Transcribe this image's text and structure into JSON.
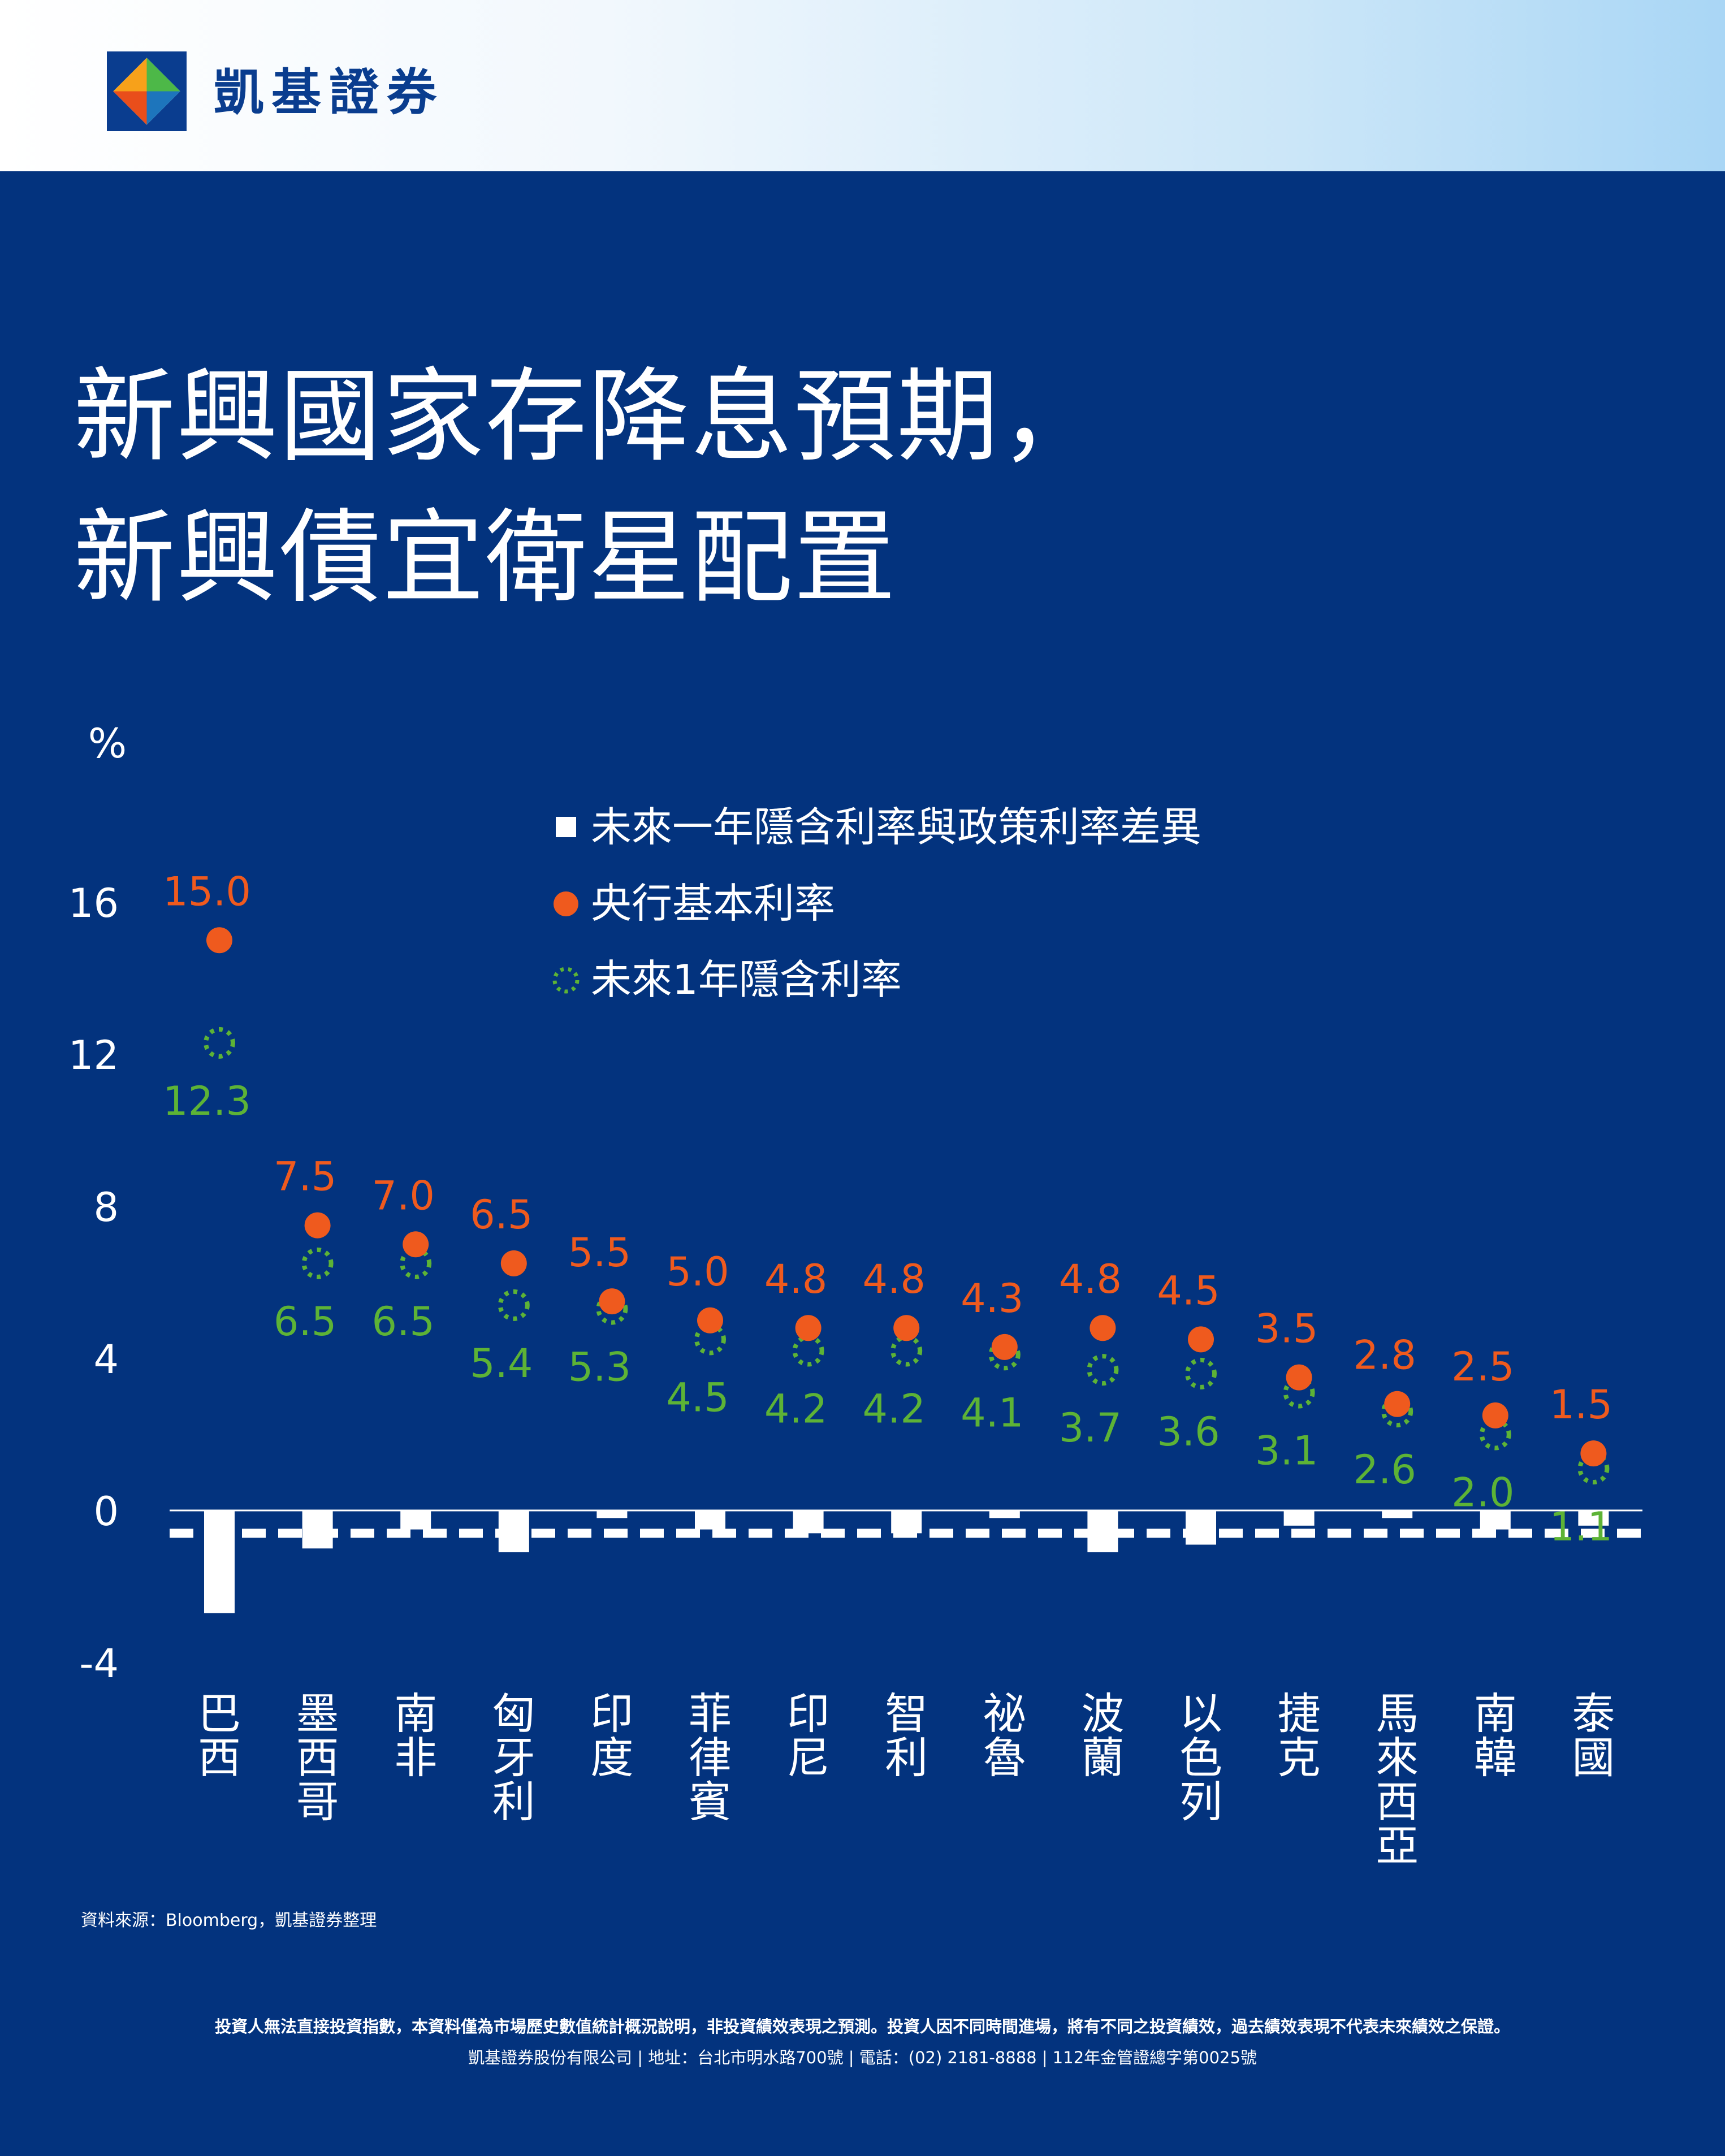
{
  "brand": {
    "name": "凱基證券",
    "colors": {
      "blue": "#0a3d8f",
      "orange": "#ef5a1e",
      "green": "#5db336",
      "white": "#ffffff"
    }
  },
  "title": {
    "line1": "新興國家存降息預期，",
    "line2": "新興債宜衛星配置"
  },
  "legend": {
    "diff": "未來一年隱含利率與政策利率差異",
    "policy": "央行基本利率",
    "implied": "未來1年隱含利率"
  },
  "chart_data": {
    "type": "bar+scatter",
    "ylabel": "%",
    "ylim": [
      -4,
      18
    ],
    "yticks": [
      16,
      12,
      8,
      4,
      0,
      -4
    ],
    "tick_labels": [
      "16",
      "12",
      "8",
      "4",
      "0",
      "-4"
    ],
    "categories": [
      "巴西",
      "墨西哥",
      "南非",
      "匈牙利",
      "印度",
      "菲律賓",
      "印尼",
      "智利",
      "祕魯",
      "波蘭",
      "以色列",
      "捷克",
      "馬來西亞",
      "南韓",
      "泰國"
    ],
    "series": [
      {
        "name": "未來一年隱含利率與政策利率差異",
        "type": "bar",
        "color": "#ffffff",
        "values": [
          -2.7,
          -1.0,
          -0.5,
          -1.1,
          -0.2,
          -0.5,
          -0.6,
          -0.6,
          -0.2,
          -1.1,
          -0.9,
          -0.4,
          -0.2,
          -0.5,
          -0.4
        ]
      },
      {
        "name": "央行基本利率",
        "type": "scatter",
        "marker": "filled-circle",
        "color": "#ef5a1e",
        "values": [
          15.0,
          7.5,
          7.0,
          6.5,
          5.5,
          5.0,
          4.8,
          4.8,
          4.3,
          4.8,
          4.5,
          3.5,
          2.8,
          2.5,
          1.5
        ],
        "labels": [
          "15.0",
          "7.5",
          "7.0",
          "6.5",
          "5.5",
          "5.0",
          "4.8",
          "4.8",
          "4.3",
          "4.8",
          "4.5",
          "3.5",
          "2.8",
          "2.5",
          "1.5"
        ]
      },
      {
        "name": "未來1年隱含利率",
        "type": "scatter",
        "marker": "dotted-circle",
        "color": "#5db336",
        "values": [
          12.3,
          6.5,
          6.5,
          5.4,
          5.3,
          4.5,
          4.2,
          4.2,
          4.1,
          3.7,
          3.6,
          3.1,
          2.6,
          2.0,
          1.1
        ],
        "labels": [
          "12.3",
          "6.5",
          "6.5",
          "5.4",
          "5.3",
          "4.5",
          "4.2",
          "4.2",
          "4.1",
          "3.7",
          "3.6",
          "3.1",
          "2.6",
          "2.0",
          "1.1"
        ]
      }
    ],
    "reference_line": {
      "style": "dashed",
      "color": "#ffffff",
      "value": -0.6
    }
  },
  "footer": {
    "source": "資料來源：Bloomberg，凱基證券整理",
    "disclaimer": "投資人無法直接投資指數，本資料僅為市場歷史數值統計概況說明，非投資績效表現之預測。投資人因不同時間進場，將有不同之投資績效，過去績效表現不代表未來績效之保證。",
    "company": "凱基證券股份有限公司 | 地址：台北市明水路700號 | 電話：(02) 2181-8888 | 112年金管證總字第0025號"
  }
}
